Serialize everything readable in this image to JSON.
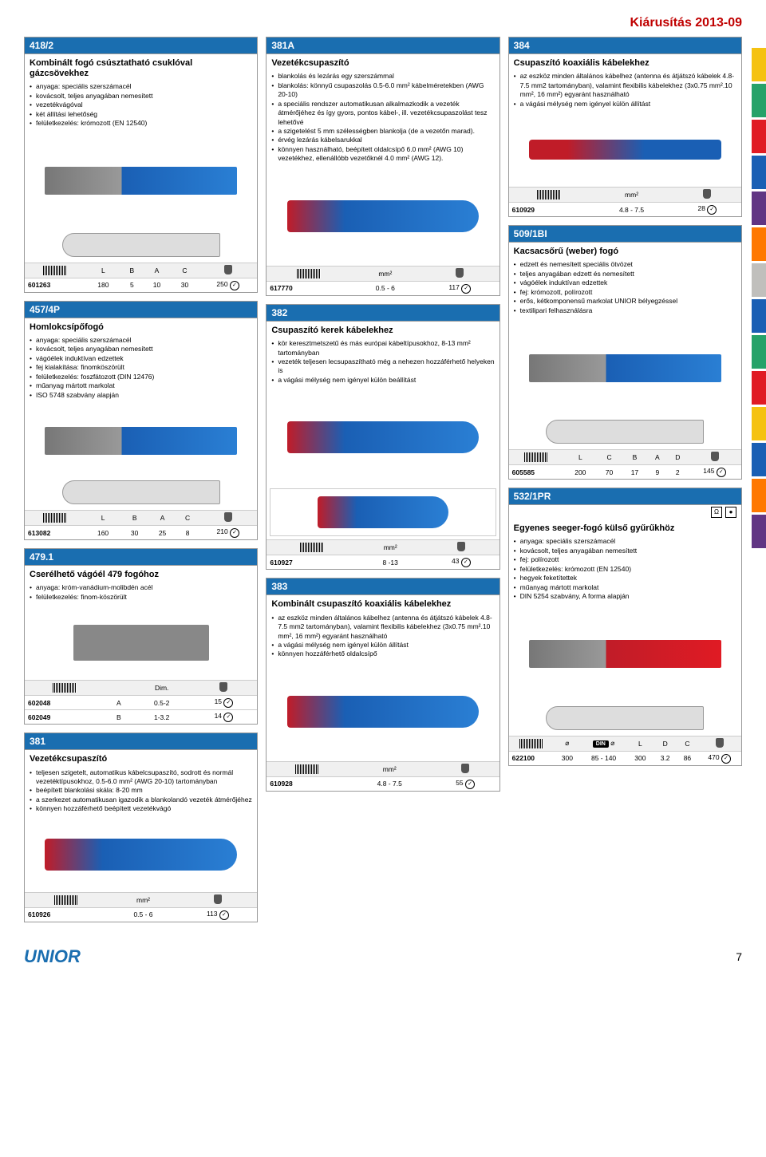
{
  "page": {
    "headerTitle": "Kiárusítás 2013-09",
    "pageNumber": "7",
    "logo": "UNIOR"
  },
  "edgeTabs": [
    "#f5c211",
    "#26a269",
    "#e01b24",
    "#1a5fb4",
    "#613583",
    "#ff7800",
    "#c0bfbc",
    "#1a5fb4",
    "#26a269",
    "#e01b24",
    "#f5c211",
    "#1a5fb4",
    "#ff7800",
    "#613583"
  ],
  "p418_2": {
    "code": "418/2",
    "title": "Kombinált fogó csúsztatható csuklóval gázcsövekhez",
    "bullets": [
      "anyaga: speciális szerszámacél",
      "kovácsolt, teljes anyagában nemesített",
      "vezetékvágóval",
      "két állítási lehetőség",
      "felületkezelés: krómozott (EN 12540)"
    ],
    "headers": [
      "",
      "L",
      "B",
      "A",
      "C",
      ""
    ],
    "rows": [
      [
        "601263",
        "180",
        "5",
        "10",
        "30",
        "250"
      ]
    ]
  },
  "p381A": {
    "code": "381A",
    "title": "Vezetékcsupaszító",
    "bullets": [
      "blankolás és lezárás egy szerszámmal",
      "blankolás: könnyű csupaszolás 0.5-6.0 mm² kábelméretekben (AWG 20-10)",
      "a speciális rendszer automatikusan alkalmazkodik a vezeték átmérőjéhez és így gyors, pontos kábel-, ill. vezetékcsupaszolást tesz lehetővé",
      "a szigetelést 5 mm szélességben blankolja (de a vezetőn marad).",
      "érvég lezárás kábelsarukkal",
      "könnyen használható, beépített oldalcsípő 6.0 mm² (AWG 10) vezetékhez, ellenállóbb vezetőknél 4.0 mm² (AWG 12)."
    ],
    "headers": [
      "",
      "mm²",
      ""
    ],
    "rows": [
      [
        "617770",
        "0.5 - 6",
        "117"
      ]
    ]
  },
  "p384": {
    "code": "384",
    "title": "Csupaszító koaxiális kábelekhez",
    "bullets": [
      "az eszköz minden általános kábelhez (antenna és átjátszó kábelek 4.8-7.5 mm2 tartományban), valamint flexibilis kábelekhez (3x0.75 mm².10 mm², 16 mm²) egyaránt használható",
      "a vágási mélység nem igényel külön állítást"
    ],
    "headers": [
      "",
      "mm²",
      ""
    ],
    "rows": [
      [
        "610929",
        "4.8 - 7.5",
        "28"
      ]
    ]
  },
  "p457_4P": {
    "code": "457/4P",
    "title": "Homlokcsípőfogó",
    "bullets": [
      "anyaga: speciális szerszámacél",
      "kovácsolt, teljes anyagában nemesített",
      "vágóélek induktívan edzettek",
      "fej kialakítása: finomköszörült",
      "felületkezelés: foszfátozott (DIN 12476)",
      "műanyag mártott markolat",
      "ISO 5748 szabvány alapján"
    ],
    "headers": [
      "",
      "L",
      "B",
      "A",
      "C",
      ""
    ],
    "rows": [
      [
        "613082",
        "160",
        "30",
        "25",
        "8",
        "210"
      ]
    ]
  },
  "p382": {
    "code": "382",
    "title": "Csupaszító kerek kábelekhez",
    "bullets": [
      "kör keresztmetszetű és más európai kábeltípusokhoz, 8-13 mm² tartományban",
      "vezeték teljesen lecsupaszítható még a nehezen hozzáférhető helyeken is",
      "a vágási mélység nem igényel külön beállítást"
    ],
    "headers": [
      "",
      "mm²",
      ""
    ],
    "rows": [
      [
        "610927",
        "8 -13",
        "43"
      ]
    ]
  },
  "p509_1BI": {
    "code": "509/1BI",
    "title": "Kacsacsőrű (weber) fogó",
    "bullets": [
      "edzett és nemesített speciális ötvözet",
      "teljes anyagában edzett és nemesített",
      "vágóélek induktívan edzettek",
      "fej: krómozott, polírozott",
      "erős, kétkomponensű markolat UNIOR bélyegzéssel",
      "textilipari felhasználásra"
    ],
    "headers": [
      "",
      "L",
      "C",
      "B",
      "A",
      "D",
      ""
    ],
    "rows": [
      [
        "605585",
        "200",
        "70",
        "17",
        "9",
        "2",
        "145"
      ]
    ]
  },
  "p479_1": {
    "code": "479.1",
    "title": "Cserélhető vágóél 479 fogóhoz",
    "bullets": [
      "anyaga: króm-vanádium-molibdén acél",
      "felületkezelés: finom-köszörült"
    ],
    "headers": [
      "",
      "",
      "Dim.",
      ""
    ],
    "rows": [
      [
        "602048",
        "A",
        "0.5-2",
        "15"
      ],
      [
        "602049",
        "B",
        "1-3.2",
        "14"
      ]
    ]
  },
  "p383": {
    "code": "383",
    "title": "Kombinált csupaszító koaxiális kábelekhez",
    "bullets": [
      "az eszköz minden általános kábelhez (antenna és átjátszó kábelek 4.8-7.5 mm2 tartományban), valamint flexibilis kábelekhez (3x0.75 mm².10 mm², 16 mm²) egyaránt használható",
      "a vágási mélység nem igényel külön állítást",
      "könnyen hozzáférhető oldalcsípő"
    ],
    "headers": [
      "",
      "mm²",
      ""
    ],
    "rows": [
      [
        "610928",
        "4.8 - 7.5",
        "55"
      ]
    ]
  },
  "p532_1PR": {
    "code": "532/1PR",
    "title": "Egyenes seeger-fogó külső gyűrűkhöz",
    "bullets": [
      "anyaga: speciális szerszámacél",
      "kovácsolt, teljes anyagában nemesített",
      "fej: polírozott",
      "felületkezelés: krómozott (EN 12540)",
      "hegyek feketítettek",
      "műanyag mártott markolat",
      "DIN 5254 szabvány, A forma alapján"
    ],
    "headers": [
      "",
      "⌀",
      "",
      "L",
      "D",
      "C",
      ""
    ],
    "rows": [
      [
        "622100",
        "300",
        "85 - 140",
        "300",
        "3.2",
        "86",
        "470"
      ]
    ],
    "dinLabel": "DIN"
  },
  "p381": {
    "code": "381",
    "title": "Vezetékcsupaszító",
    "bullets": [
      "teljesen szigetelt, automatikus kábelcsupaszító, sodrott és normál vezetéktípusokhoz, 0.5-6.0 mm² (AWG 20-10) tartományban",
      "beépített blankolási skála: 8-20 mm",
      "a szerkezet automatikusan igazodik a blankolandó vezeték átmérőjéhez",
      "könnyen hozzáférhető beépített vezetékvágó"
    ],
    "headers": [
      "",
      "mm²",
      ""
    ],
    "rows": [
      [
        "610926",
        "0.5 - 6",
        "113"
      ]
    ]
  }
}
